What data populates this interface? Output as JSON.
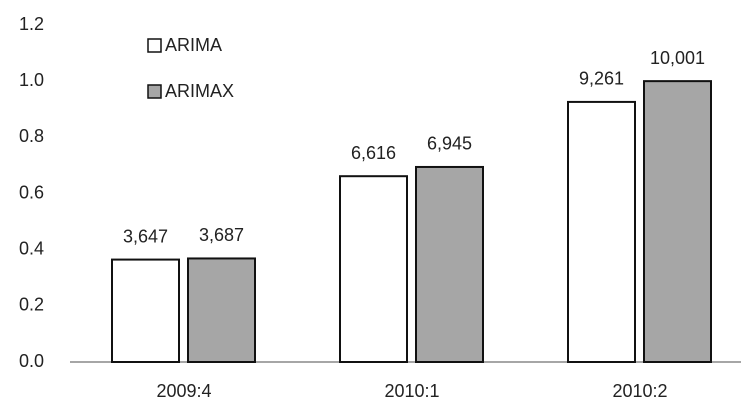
{
  "chart_data": {
    "type": "bar",
    "categories": [
      "2009:4",
      "2010:1",
      "2010:2"
    ],
    "series": [
      {
        "name": "ARIMA",
        "color": "#ffffff",
        "values": [
          0.3647,
          0.6616,
          0.9261
        ],
        "value_labels": [
          "3,647",
          "6,616",
          "9,261"
        ]
      },
      {
        "name": "ARIMAX",
        "color": "#a6a6a6",
        "values": [
          0.3687,
          0.6945,
          1.0001
        ],
        "value_labels": [
          "3,687",
          "6,945",
          "10,001"
        ]
      }
    ],
    "ylim": [
      0,
      1.2
    ],
    "yticks": [
      {
        "value": 0,
        "label": "0.0"
      },
      0.2,
      0.4,
      0.6,
      0.8,
      {
        "value": 1,
        "label": "1.0"
      },
      1.2
    ],
    "legend": "top-left"
  }
}
